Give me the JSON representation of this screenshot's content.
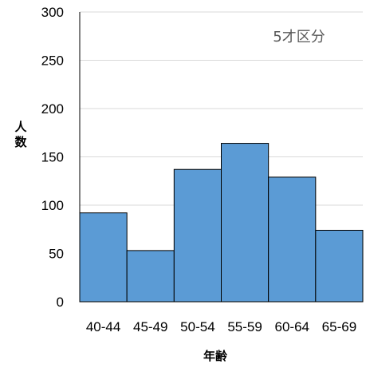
{
  "chart_data": {
    "type": "bar",
    "categories": [
      "40-44",
      "45-49",
      "50-54",
      "55-59",
      "60-64",
      "65-69"
    ],
    "values": [
      92,
      53,
      137,
      164,
      129,
      74
    ],
    "ylim": [
      0,
      300
    ],
    "yticks": [
      "0",
      "50",
      "100",
      "150",
      "200",
      "250",
      "300"
    ],
    "xlabel": "年齢",
    "ylabel": "人数",
    "annotation": "5才区分",
    "grid": true,
    "legend": "none",
    "colors": {
      "bar_fill": "#5b9bd5",
      "bar_stroke": "#000000",
      "grid": "#d9d9d9",
      "annotation": "#595959"
    }
  }
}
